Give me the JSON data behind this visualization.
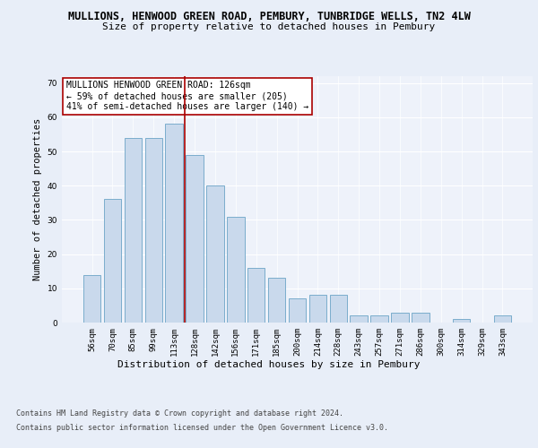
{
  "title1": "MULLIONS, HENWOOD GREEN ROAD, PEMBURY, TUNBRIDGE WELLS, TN2 4LW",
  "title2": "Size of property relative to detached houses in Pembury",
  "xlabel": "Distribution of detached houses by size in Pembury",
  "ylabel": "Number of detached properties",
  "categories": [
    "56sqm",
    "70sqm",
    "85sqm",
    "99sqm",
    "113sqm",
    "128sqm",
    "142sqm",
    "156sqm",
    "171sqm",
    "185sqm",
    "200sqm",
    "214sqm",
    "228sqm",
    "243sqm",
    "257sqm",
    "271sqm",
    "286sqm",
    "300sqm",
    "314sqm",
    "329sqm",
    "343sqm"
  ],
  "values": [
    14,
    36,
    54,
    54,
    58,
    49,
    40,
    31,
    16,
    13,
    7,
    8,
    8,
    2,
    2,
    3,
    3,
    0,
    1,
    0,
    2
  ],
  "bar_color": "#c9d9ec",
  "bar_edge_color": "#7aadcc",
  "vline_x_index": 4.5,
  "vline_color": "#aa0000",
  "annotation_text": "MULLIONS HENWOOD GREEN ROAD: 126sqm\n← 59% of detached houses are smaller (205)\n41% of semi-detached houses are larger (140) →",
  "annotation_box_color": "white",
  "annotation_box_edge": "#aa0000",
  "ylim": [
    0,
    72
  ],
  "yticks": [
    0,
    10,
    20,
    30,
    40,
    50,
    60,
    70
  ],
  "footer1": "Contains HM Land Registry data © Crown copyright and database right 2024.",
  "footer2": "Contains public sector information licensed under the Open Government Licence v3.0.",
  "bg_color": "#e8eef8",
  "plot_bg_color": "#eef2fa",
  "title_fontsize": 8.5,
  "subtitle_fontsize": 8,
  "ylabel_fontsize": 7.5,
  "xlabel_fontsize": 8,
  "tick_fontsize": 6.5,
  "footer_fontsize": 6,
  "annot_fontsize": 7
}
